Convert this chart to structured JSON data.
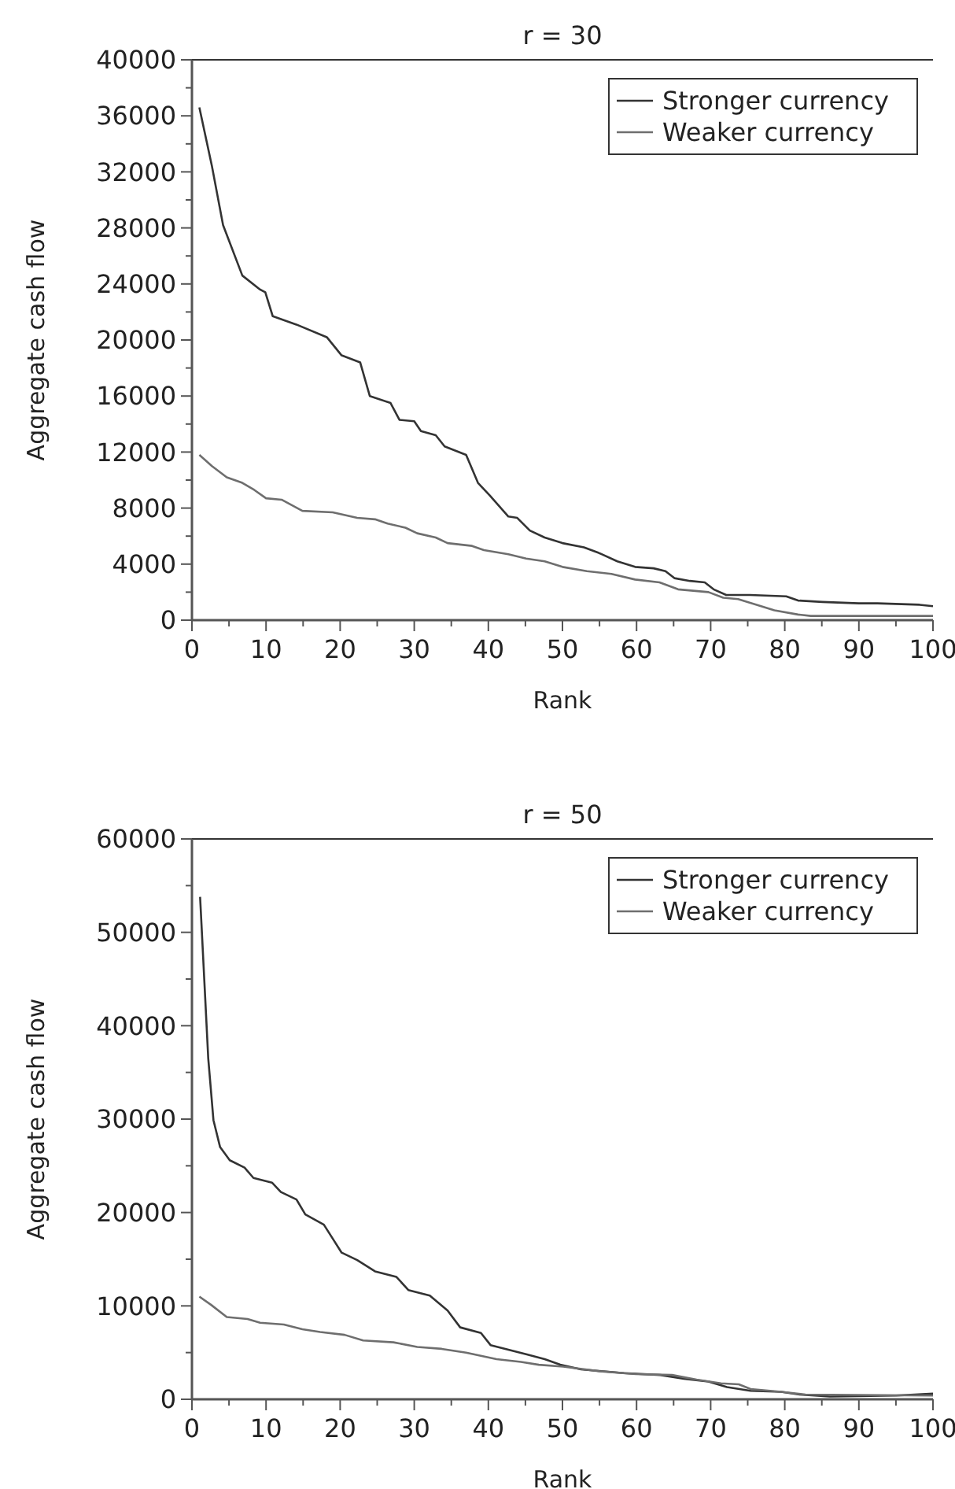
{
  "chart_data": [
    {
      "type": "line",
      "title": "r = 30",
      "xlabel": "Rank",
      "ylabel": "Aggregate cash flow",
      "xlim": [
        0,
        100
      ],
      "ylim": [
        0,
        40000
      ],
      "xticks": [
        0,
        {
          "value": 5,
          "label": null
        },
        10,
        {
          "value": 15,
          "label": null
        },
        20,
        {
          "value": 25,
          "label": null
        },
        30,
        {
          "value": 35,
          "label": null
        },
        40,
        {
          "value": 45,
          "label": null
        },
        50,
        {
          "value": 55,
          "label": null
        },
        60,
        {
          "value": 65,
          "label": null
        },
        70,
        {
          "value": 75,
          "label": null
        },
        80,
        {
          "value": 85,
          "label": null
        },
        90,
        {
          "value": 95,
          "label": null
        },
        100
      ],
      "yticks": [
        0,
        {
          "value": 2000,
          "label": null
        },
        4000,
        {
          "value": 6000,
          "label": null
        },
        8000,
        {
          "value": 10000,
          "label": null
        },
        12000,
        {
          "value": 14000,
          "label": null
        },
        16000,
        {
          "value": 18000,
          "label": null
        },
        20000,
        {
          "value": 22000,
          "label": null
        },
        24000,
        {
          "value": 26000,
          "label": null
        },
        28000,
        {
          "value": 30000,
          "label": null
        },
        32000,
        {
          "value": 34000,
          "label": null
        },
        36000,
        {
          "value": 38000,
          "label": null
        },
        40000
      ],
      "grid": false,
      "legend": "top right",
      "marker": "none",
      "line_style": "solid",
      "series": [
        {
          "name": "Stronger currency",
          "color": "#333333",
          "x": [
            1,
            2.7,
            4.2,
            6.8,
            9.2,
            9.9,
            10.9,
            14.1,
            18.2,
            20.2,
            22.7,
            24,
            26.8,
            28,
            30,
            30.9,
            32.9,
            34.1,
            37,
            38.6,
            40.2,
            42.7,
            43.9,
            45.6,
            47.6,
            50,
            52.9,
            54.9,
            57.4,
            59.8,
            62.3,
            63.9,
            65.1,
            67.2,
            69.2,
            70.4,
            72.1,
            75.3,
            80.2,
            81.8,
            85.1,
            90,
            92.5,
            98.2,
            100
          ],
          "values": [
            36600,
            32400,
            28200,
            24600,
            23600,
            23400,
            21700,
            21100,
            20200,
            18900,
            18400,
            16000,
            15500,
            14300,
            14200,
            13500,
            13200,
            12400,
            11800,
            9800,
            8900,
            7400,
            7300,
            6400,
            5900,
            5500,
            5200,
            4800,
            4200,
            3800,
            3700,
            3500,
            3000,
            2800,
            2700,
            2200,
            1800,
            1800,
            1700,
            1400,
            1300,
            1200,
            1200,
            1100,
            1000
          ]
        },
        {
          "name": "Weaker currency",
          "color": "#6e6e6e",
          "x": [
            1,
            2.7,
            4.7,
            6.8,
            8.4,
            10,
            12.1,
            14.9,
            19,
            22.3,
            24.7,
            26.4,
            28.8,
            30.4,
            32.9,
            34.5,
            37.8,
            39.4,
            42.7,
            45.1,
            47.6,
            50,
            53.3,
            56.6,
            59.8,
            63.1,
            65.6,
            69.7,
            71.7,
            73.7,
            76.2,
            78.6,
            81.8,
            83.5,
            100
          ],
          "values": [
            11800,
            11000,
            10200,
            9800,
            9300,
            8700,
            8600,
            7800,
            7700,
            7300,
            7200,
            6900,
            6600,
            6200,
            5900,
            5500,
            5300,
            5000,
            4700,
            4400,
            4200,
            3800,
            3500,
            3300,
            2900,
            2700,
            2200,
            2000,
            1600,
            1500,
            1100,
            700,
            400,
            300,
            300
          ]
        }
      ]
    },
    {
      "type": "line",
      "title": "r = 50",
      "xlabel": "Rank",
      "ylabel": "Aggregate cash flow",
      "xlim": [
        0,
        100
      ],
      "ylim": [
        0,
        60000
      ],
      "xticks": [
        0,
        {
          "value": 5,
          "label": null
        },
        10,
        {
          "value": 15,
          "label": null
        },
        20,
        {
          "value": 25,
          "label": null
        },
        30,
        {
          "value": 35,
          "label": null
        },
        40,
        {
          "value": 45,
          "label": null
        },
        50,
        {
          "value": 55,
          "label": null
        },
        60,
        {
          "value": 65,
          "label": null
        },
        70,
        {
          "value": 75,
          "label": null
        },
        80,
        {
          "value": 85,
          "label": null
        },
        90,
        {
          "value": 95,
          "label": null
        },
        100
      ],
      "yticks": [
        0,
        {
          "value": 5000,
          "label": null
        },
        10000,
        {
          "value": 15000,
          "label": null
        },
        20000,
        {
          "value": 25000,
          "label": null
        },
        30000,
        {
          "value": 35000,
          "label": null
        },
        40000,
        {
          "value": 45000,
          "label": null
        },
        50000,
        {
          "value": 55000,
          "label": null
        },
        60000
      ],
      "grid": false,
      "legend": "top right",
      "marker": "none",
      "line_style": "solid",
      "series": [
        {
          "name": "Stronger currency",
          "color": "#333333",
          "x": [
            1.1,
            2.2,
            2.9,
            3.8,
            5.1,
            7.1,
            8.3,
            10.8,
            12,
            14.1,
            15.3,
            17.8,
            19,
            20.2,
            22.3,
            24.7,
            27.6,
            29.2,
            32.1,
            34.5,
            36.2,
            39,
            40.3,
            42.7,
            45.2,
            47.6,
            49.7,
            52.5,
            58.3,
            63.2,
            66.4,
            69.7,
            72.2,
            75.4,
            79.5,
            82,
            86.1,
            95,
            100
          ],
          "values": [
            53800,
            36500,
            29900,
            27000,
            25600,
            24800,
            23700,
            23200,
            22200,
            21400,
            19800,
            18700,
            17200,
            15700,
            14900,
            13700,
            13100,
            11700,
            11100,
            9500,
            7700,
            7100,
            5800,
            5300,
            4800,
            4300,
            3700,
            3200,
            2800,
            2600,
            2200,
            1900,
            1300,
            900,
            800,
            500,
            300,
            400,
            600
          ]
        },
        {
          "name": "Weaker currency",
          "color": "#6e6e6e",
          "x": [
            1,
            2.6,
            4.7,
            7.5,
            9.2,
            12.4,
            14.9,
            17.3,
            20.6,
            23.1,
            27.2,
            30.4,
            33.7,
            37,
            41.1,
            44.4,
            46.8,
            50.1,
            55,
            59.9,
            64.8,
            68.1,
            71.4,
            73.8,
            75.4,
            79.5,
            82.8,
            100
          ],
          "values": [
            11000,
            10100,
            8800,
            8600,
            8200,
            8000,
            7500,
            7200,
            6900,
            6300,
            6100,
            5600,
            5400,
            5000,
            4300,
            4000,
            3700,
            3500,
            3000,
            2700,
            2600,
            2100,
            1700,
            1600,
            1100,
            800,
            500,
            400
          ]
        }
      ]
    }
  ]
}
